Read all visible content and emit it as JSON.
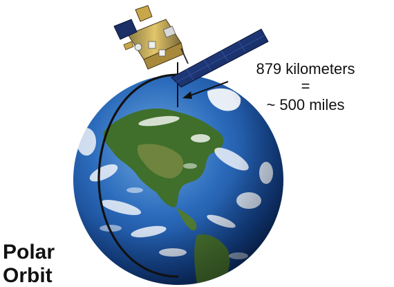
{
  "annotation": {
    "line1": "879 kilometers",
    "line2": "=",
    "line3": "~ 500 miles"
  },
  "title": {
    "line1": "Polar",
    "line2": "Orbit"
  },
  "colors": {
    "ocean": "#1f5fae",
    "land": "#3f6f2a",
    "orbit": "#111111",
    "panel": "#1b2f6a",
    "satellite_body": "#c9a64a"
  },
  "icons": {
    "satellite": "satellite-icon",
    "earth": "earth-globe"
  }
}
